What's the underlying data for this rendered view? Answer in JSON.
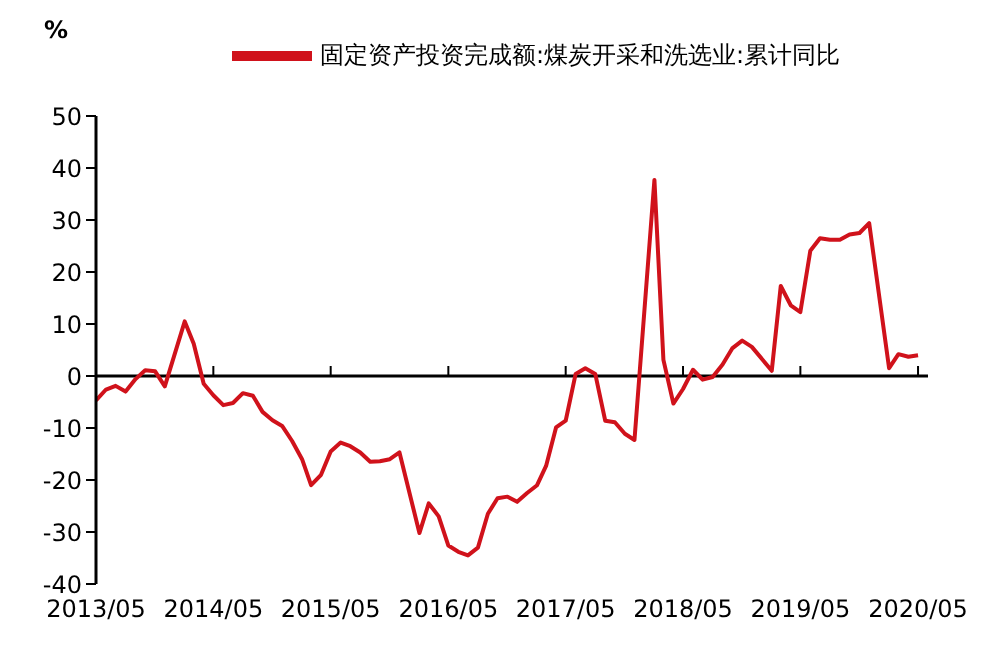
{
  "chart_data": {
    "type": "line",
    "ylabel": "%",
    "legend": "top",
    "grid": false,
    "marker": "none",
    "line_style": "solid",
    "x": [
      "2013-05",
      "2013-06",
      "2013-07",
      "2013-08",
      "2013-09",
      "2013-10",
      "2013-11",
      "2013-12",
      "2014-02",
      "2014-03",
      "2014-04",
      "2014-05",
      "2014-06",
      "2014-07",
      "2014-08",
      "2014-09",
      "2014-10",
      "2014-11",
      "2014-12",
      "2015-01",
      "2015-02",
      "2015-03",
      "2015-04",
      "2015-05",
      "2015-06",
      "2015-07",
      "2015-08",
      "2015-09",
      "2015-10",
      "2015-11",
      "2015-12",
      "2016-02",
      "2016-03",
      "2016-04",
      "2016-05",
      "2016-06",
      "2016-07",
      "2016-08",
      "2016-09",
      "2016-10",
      "2016-11",
      "2016-12",
      "2017-01",
      "2017-02",
      "2017-03",
      "2017-04",
      "2017-05",
      "2017-06",
      "2017-07",
      "2017-08",
      "2017-09",
      "2017-10",
      "2017-11",
      "2017-12",
      "2018-02",
      "2018-03",
      "2018-04",
      "2018-05",
      "2018-06",
      "2018-07",
      "2018-08",
      "2018-09",
      "2018-10",
      "2018-11",
      "2018-12",
      "2019-02",
      "2019-03",
      "2019-04",
      "2019-05",
      "2019-06",
      "2019-07",
      "2019-08",
      "2019-09",
      "2019-10",
      "2019-11",
      "2019-12",
      "2020-02",
      "2020-03",
      "2020-04",
      "2020-05"
    ],
    "series": [
      {
        "name": "固定资产投资完成额:煤炭开采和洗选业:累计同比",
        "color": "#d0121b",
        "values": [
          -4.7,
          -2.6,
          -1.9,
          -3.0,
          -0.6,
          1.1,
          0.9,
          -2.0,
          10.5,
          6.2,
          -1.5,
          -3.7,
          -5.6,
          -5.2,
          -3.3,
          -3.8,
          -6.9,
          -8.5,
          -9.6,
          -12.5,
          -16,
          -21,
          -19,
          -14.5,
          -12.8,
          -13.5,
          -14.7,
          -16.5,
          -16.4,
          -16,
          -14.7,
          -30.2,
          -24.5,
          -27,
          -32.6,
          -33.8,
          -34.5,
          -33,
          -26.5,
          -23.5,
          -23.2,
          -24.2,
          -22.5,
          -21,
          -17.3,
          -9.9,
          -8.6,
          0.4,
          1.5,
          0.4,
          -8.6,
          -8.9,
          -11.1,
          -12.3,
          37.7,
          3.1,
          -5.3,
          -2.5,
          1.2,
          -0.7,
          -0.2,
          2.2,
          5.3,
          6.8,
          5.6,
          1.0,
          17.3,
          13.6,
          12.3,
          24.1,
          26.5,
          26.2,
          26.2,
          27.2,
          27.5,
          29.4,
          1.5,
          4.2,
          3.7,
          4.0
        ]
      }
    ],
    "xlim": [
      "2013-05",
      "2020-06"
    ],
    "xticks": [
      {
        "value": "2013-05",
        "label": "2013/05"
      },
      {
        "value": "2014-05",
        "label": "2014/05"
      },
      {
        "value": "2015-05",
        "label": "2015/05"
      },
      {
        "value": "2016-05",
        "label": "2016/05"
      },
      {
        "value": "2017-05",
        "label": "2017/05"
      },
      {
        "value": "2018-05",
        "label": "2018/05"
      },
      {
        "value": "2019-05",
        "label": "2019/05"
      },
      {
        "value": "2020-05",
        "label": "2020/05"
      }
    ],
    "ref_lines": [
      {
        "axis": "y",
        "value": 0,
        "color": "#000000"
      }
    ],
    "ylim": [
      -40,
      50
    ],
    "yticks": [
      -40,
      -30,
      -20,
      -10,
      0,
      10,
      20,
      30,
      40,
      50
    ]
  }
}
